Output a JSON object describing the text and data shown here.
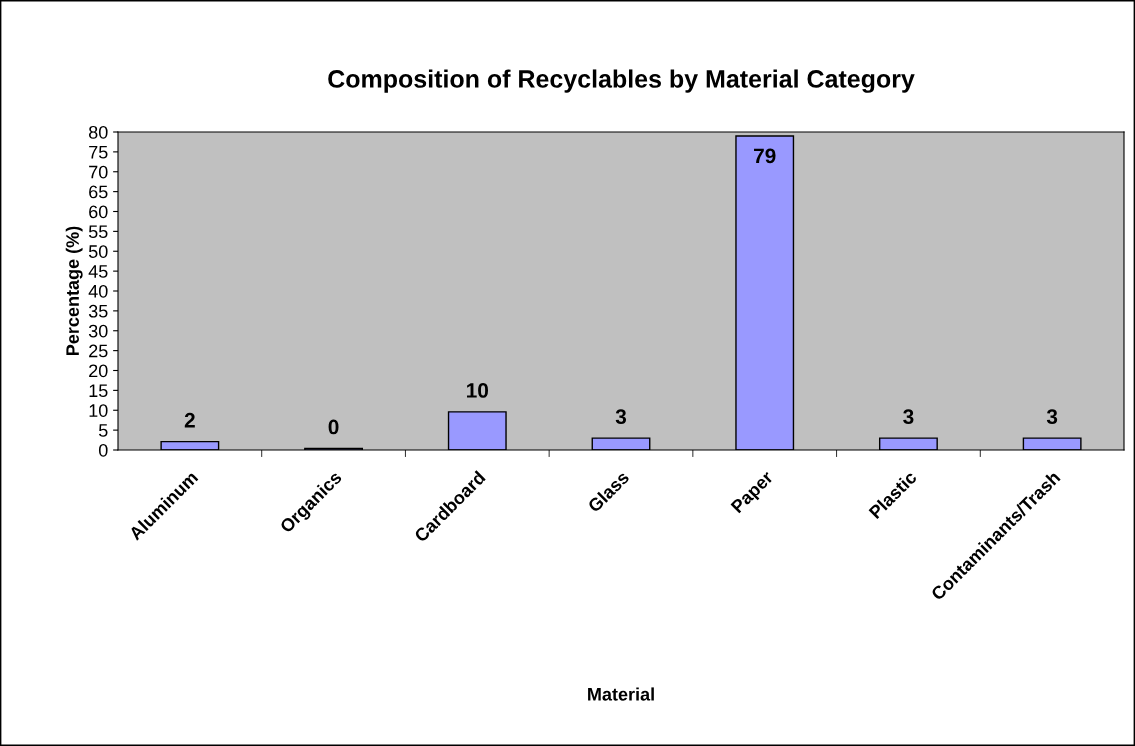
{
  "chart_data": {
    "type": "bar",
    "title": "Composition of Recyclables by Material Category",
    "xlabel": "Material",
    "ylabel": "Percentage (%)",
    "categories": [
      "Aluminum",
      "Organics",
      "Cardboard",
      "Glass",
      "Paper",
      "Plastic",
      "Contaminants/Trash"
    ],
    "values": [
      2.1,
      0.4,
      9.6,
      3,
      79,
      3,
      3
    ],
    "value_labels": [
      "2",
      "0",
      "10",
      "3",
      "79",
      "3",
      "3"
    ],
    "color": "#9999ff",
    "ylim": [
      0,
      80
    ],
    "yticks": [
      0,
      5,
      10,
      15,
      20,
      25,
      30,
      35,
      40,
      45,
      50,
      55,
      60,
      65,
      70,
      75,
      80
    ],
    "grid": false,
    "legend": false
  }
}
